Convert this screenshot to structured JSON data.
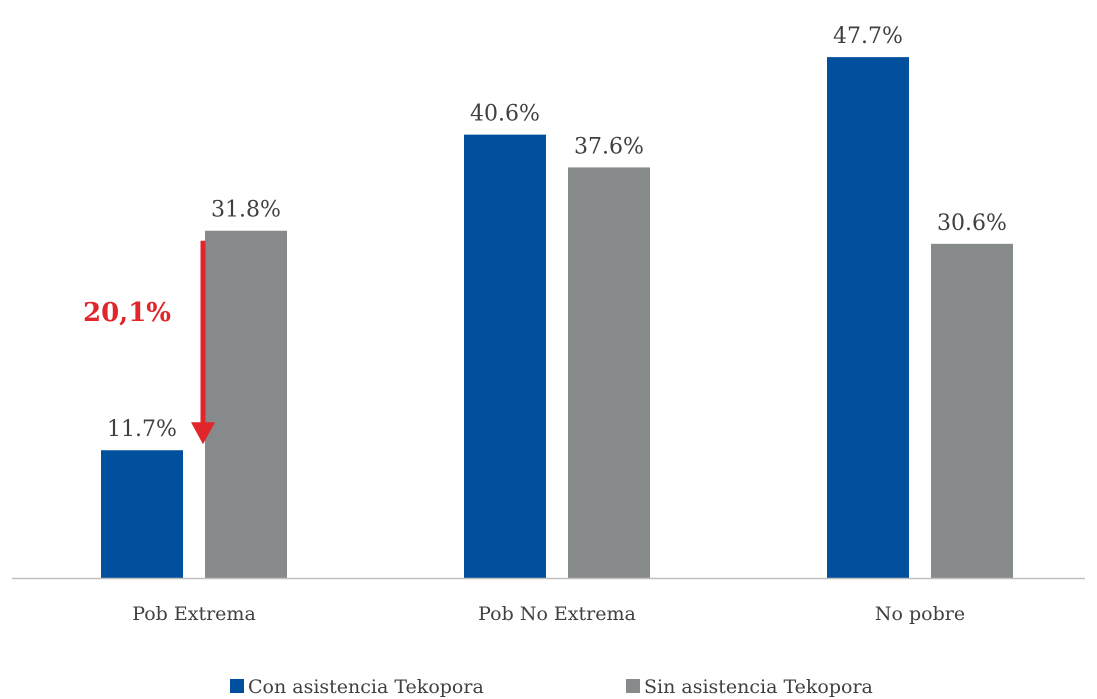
{
  "chart_data": {
    "type": "bar",
    "categories": [
      "Pob Extrema",
      "Pob No Extrema",
      "No pobre"
    ],
    "series": [
      {
        "name": "Con asistencia Tekopora",
        "values": [
          11.7,
          40.6,
          47.7
        ],
        "labels": [
          "11.7%",
          "40.6%",
          "47.7%"
        ],
        "color": "#00509E"
      },
      {
        "name": "Sin asistencia Tekopora",
        "values": [
          31.8,
          37.6,
          30.6
        ],
        "labels": [
          "31.8%",
          "37.6%",
          "30.6%"
        ],
        "color": "#878A8A"
      }
    ],
    "ylim": [
      0,
      50
    ],
    "grid": false,
    "legend_position": "bottom",
    "annotation": {
      "text": "20,1%",
      "color": "#E0262B",
      "from_value": 31.8,
      "to_value": 11.7,
      "category": "Pob Extrema"
    },
    "axis_color": "#BFBFBF"
  }
}
